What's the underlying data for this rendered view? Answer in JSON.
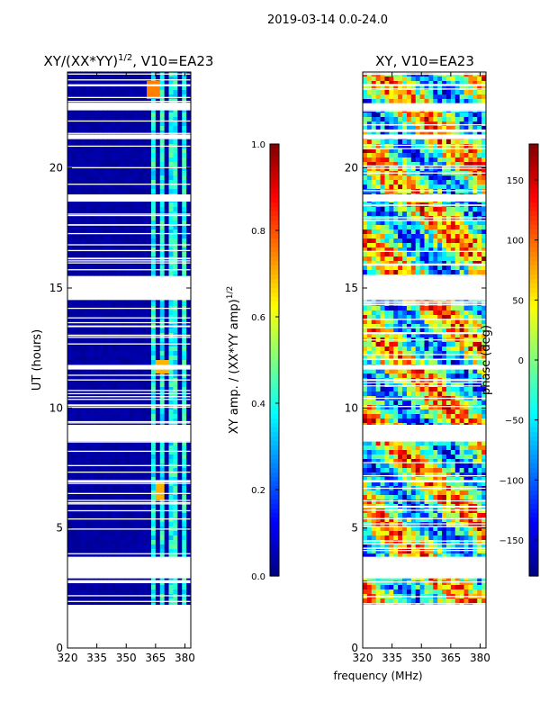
{
  "figure": {
    "suptitle": "2019-03-14 0.0-24.0",
    "xlabel": "frequency (MHz)"
  },
  "chart_data": [
    {
      "type": "heatmap",
      "title": "XY/(XX*YY)",
      "title_exp": "1/2",
      "title_suffix": ", V10=EA23",
      "xlabel": "",
      "ylabel": "UT (hours)",
      "xlim": [
        320,
        383
      ],
      "ylim": [
        0,
        24
      ],
      "xticks": [
        320,
        335,
        350,
        365,
        380
      ],
      "yticks": [
        0,
        5,
        10,
        15,
        20
      ],
      "colorbar": {
        "label": "XY amp. / (XX*YY amp)",
        "label_exp": "1/2",
        "range": [
          0.0,
          1.0
        ],
        "ticks": [
          "0.0",
          "0.2",
          "0.4",
          "0.6",
          "0.8",
          "1.0"
        ],
        "colormap": "jet"
      },
      "data_blocks_hours": [
        [
          1.8,
          2.9
        ],
        [
          3.8,
          6.9
        ],
        [
          7.0,
          8.6
        ],
        [
          9.3,
          11.6
        ],
        [
          11.8,
          14.5
        ],
        [
          15.5,
          18.6
        ],
        [
          18.9,
          21.2
        ],
        [
          21.4,
          22.4
        ],
        [
          22.7,
          24.0
        ]
      ],
      "bright_channels_MHz": [
        [
          362,
          366
        ],
        [
          367,
          369
        ],
        [
          371,
          373
        ],
        [
          375,
          377
        ],
        [
          379,
          381
        ]
      ],
      "hot_spots": [
        {
          "t": 11.7,
          "f": 368,
          "level": 0.7
        },
        {
          "t": 6.5,
          "f": 367,
          "level": 0.7
        },
        {
          "t": 23.2,
          "f": 364,
          "level": 0.75
        }
      ]
    },
    {
      "type": "heatmap",
      "title": "XY, V10=EA23",
      "xlabel": "frequency (MHz)",
      "ylabel": "",
      "xlim": [
        320,
        383
      ],
      "ylim": [
        0,
        24
      ],
      "xticks": [
        320,
        335,
        350,
        365,
        380
      ],
      "yticks": [
        0,
        5,
        10,
        15,
        20
      ],
      "colorbar": {
        "label": "phase (deg)",
        "range": [
          -180,
          180
        ],
        "ticks": [
          "−150",
          "−100",
          "−50",
          "0",
          "50",
          "100",
          "150"
        ],
        "colormap": "jet"
      },
      "data_blocks_hours": [
        [
          1.8,
          2.9
        ],
        [
          3.8,
          6.9
        ],
        [
          7.0,
          8.6
        ],
        [
          9.3,
          11.6
        ],
        [
          11.8,
          14.5
        ],
        [
          15.5,
          18.6
        ],
        [
          18.9,
          21.2
        ],
        [
          21.4,
          22.4
        ],
        [
          22.7,
          24.0
        ]
      ]
    }
  ]
}
